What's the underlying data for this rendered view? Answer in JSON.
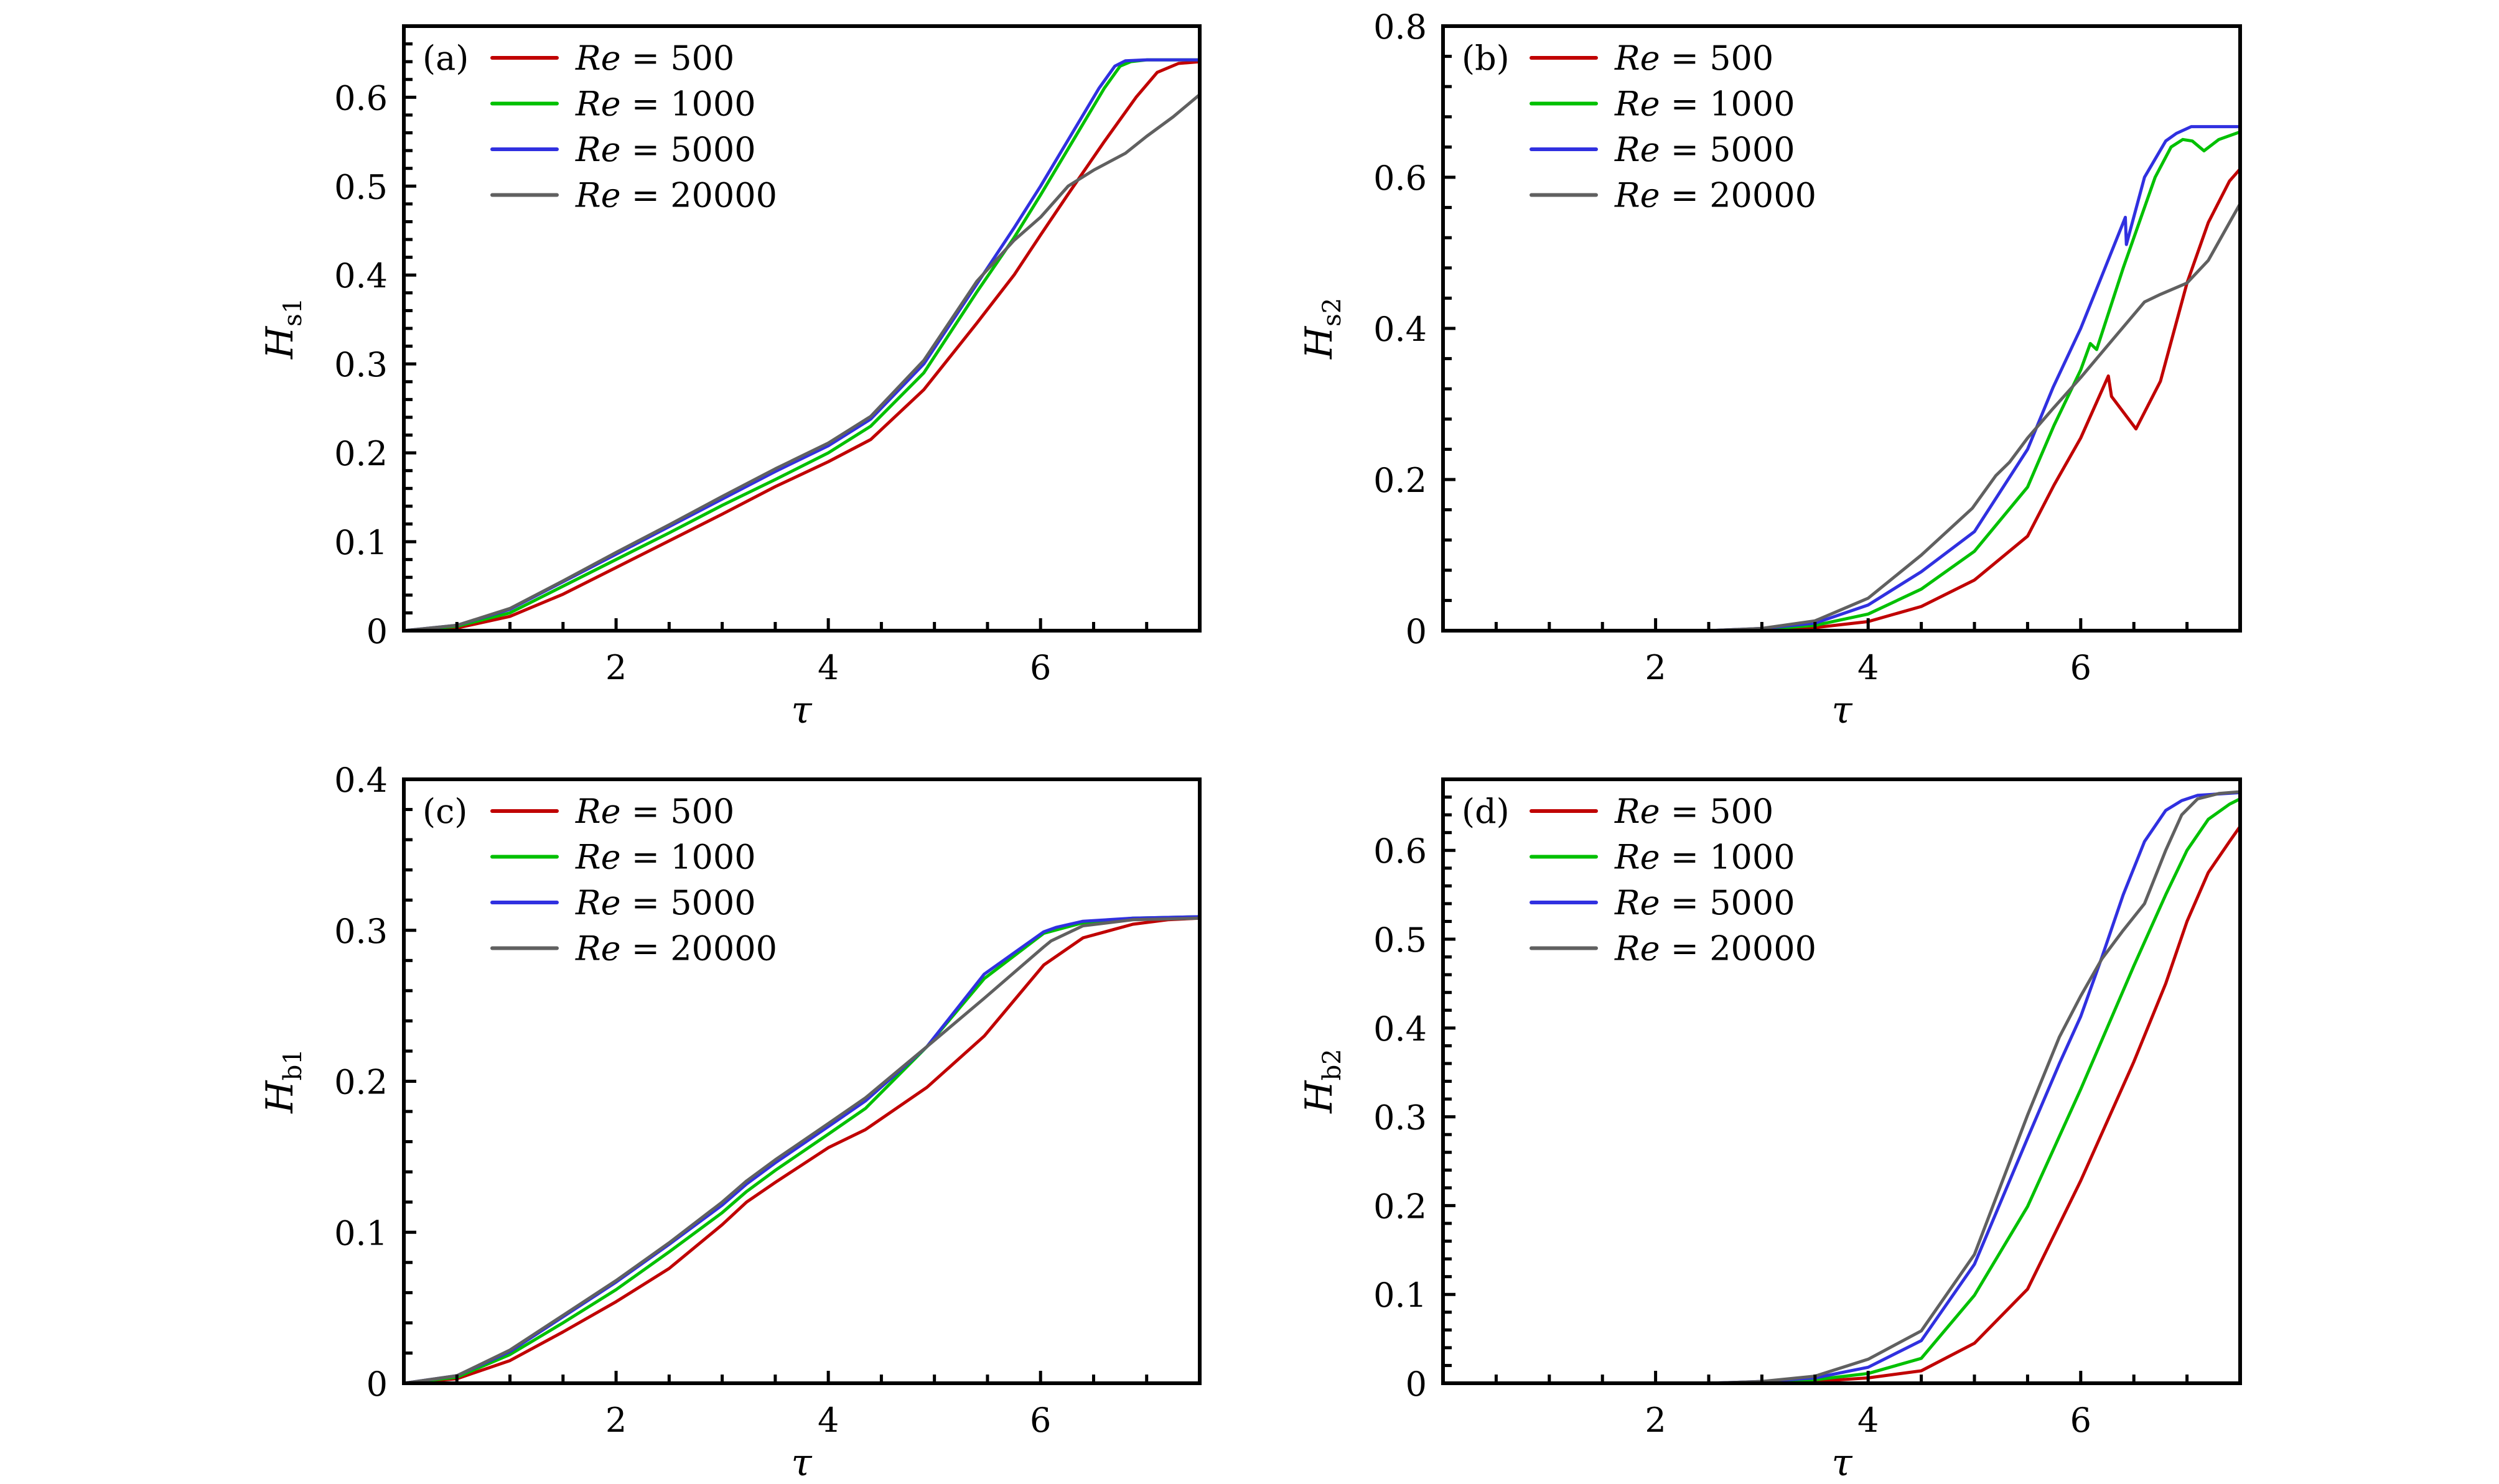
{
  "chart_data": [
    {
      "type": "line",
      "panel_label": "(a)",
      "xlabel": "τ",
      "ylabel": "H",
      "ylabel_sub": "s1",
      "xlim": [
        0,
        7.5
      ],
      "ylim": [
        0,
        0.68
      ],
      "xticks": [
        2,
        4,
        6
      ],
      "xtick_labels": [
        "2",
        "4",
        "6"
      ],
      "yticks": [
        0,
        0.1,
        0.2,
        0.3,
        0.4,
        0.5,
        0.6
      ],
      "ytick_labels": [
        "0",
        "0.1",
        "0.2",
        "0.3",
        "0.4",
        "0.5",
        "0.6"
      ],
      "x_minor_step": 0.5,
      "y_minor_step": 0.02,
      "legend": "top-left",
      "series": [
        {
          "name": "Re = 500",
          "color": "#c00000",
          "x": [
            0,
            0.5,
            1,
            1.5,
            2,
            2.5,
            3,
            3.5,
            4,
            4.4,
            4.9,
            5.4,
            5.75,
            6.0,
            6.26,
            6.6,
            6.9,
            7.1,
            7.3,
            7.5
          ],
          "y": [
            0,
            0.003,
            0.016,
            0.041,
            0.071,
            0.101,
            0.131,
            0.162,
            0.19,
            0.215,
            0.271,
            0.346,
            0.4,
            0.445,
            0.491,
            0.55,
            0.6,
            0.628,
            0.638,
            0.64
          ]
        },
        {
          "name": "Re = 1000",
          "color": "#00c000",
          "x": [
            0,
            0.5,
            1,
            1.5,
            2,
            2.5,
            3,
            3.5,
            4,
            4.4,
            4.9,
            5.4,
            5.75,
            6.0,
            6.3,
            6.6,
            6.75,
            6.85,
            7.0,
            7.5
          ],
          "y": [
            0,
            0.005,
            0.02,
            0.05,
            0.08,
            0.11,
            0.141,
            0.17,
            0.2,
            0.23,
            0.29,
            0.381,
            0.442,
            0.49,
            0.55,
            0.61,
            0.635,
            0.64,
            0.642,
            0.642
          ]
        },
        {
          "name": "Re = 5000",
          "color": "#3030e0",
          "x": [
            0,
            0.5,
            1,
            1.5,
            2,
            2.5,
            3,
            3.5,
            4,
            4.4,
            4.9,
            5.4,
            5.75,
            6.0,
            6.3,
            6.55,
            6.7,
            6.8,
            7.0,
            7.5
          ],
          "y": [
            0,
            0.006,
            0.024,
            0.055,
            0.086,
            0.117,
            0.148,
            0.179,
            0.208,
            0.238,
            0.3,
            0.39,
            0.453,
            0.5,
            0.56,
            0.61,
            0.635,
            0.641,
            0.642,
            0.642
          ]
        },
        {
          "name": "Re = 20000",
          "color": "#606060",
          "x": [
            0,
            0.5,
            1,
            1.5,
            2,
            2.5,
            3,
            3.5,
            4,
            4.4,
            4.9,
            5.4,
            5.75,
            6.0,
            6.26,
            6.5,
            6.8,
            7.0,
            7.25,
            7.5
          ],
          "y": [
            0,
            0.006,
            0.025,
            0.056,
            0.088,
            0.119,
            0.151,
            0.182,
            0.211,
            0.241,
            0.304,
            0.393,
            0.439,
            0.465,
            0.5,
            0.518,
            0.537,
            0.556,
            0.578,
            0.603
          ]
        }
      ]
    },
    {
      "type": "line",
      "panel_label": "(b)",
      "xlabel": "τ",
      "ylabel": "H",
      "ylabel_sub": "s2",
      "xlim": [
        0,
        7.5
      ],
      "ylim": [
        0,
        0.8
      ],
      "xticks": [
        2,
        4,
        6
      ],
      "xtick_labels": [
        "2",
        "4",
        "6"
      ],
      "yticks": [
        0,
        0.2,
        0.4,
        0.6,
        0.8
      ],
      "ytick_labels": [
        "0",
        "0.2",
        "0.4",
        "0.6",
        "0.8"
      ],
      "x_minor_step": 0.5,
      "y_minor_step": 0.04,
      "legend": "top-left",
      "series": [
        {
          "name": "Re = 500",
          "color": "#c00000",
          "x": [
            0,
            2.5,
            3,
            3.5,
            4,
            4.5,
            5,
            5.5,
            5.75,
            6.0,
            6.26,
            6.29,
            6.52,
            6.75,
            7.0,
            7.2,
            7.4,
            7.5
          ],
          "y": [
            0,
            0,
            0.001,
            0.004,
            0.012,
            0.032,
            0.067,
            0.125,
            0.193,
            0.255,
            0.337,
            0.31,
            0.267,
            0.33,
            0.46,
            0.54,
            0.595,
            0.611
          ]
        },
        {
          "name": "Re = 1000",
          "color": "#00c000",
          "x": [
            0,
            2.5,
            3,
            3.5,
            4,
            4.5,
            5,
            5.5,
            5.75,
            6.0,
            6.09,
            6.15,
            6.4,
            6.7,
            6.85,
            6.96,
            7.05,
            7.16,
            7.3,
            7.5
          ],
          "y": [
            0,
            0,
            0.002,
            0.007,
            0.022,
            0.055,
            0.105,
            0.19,
            0.272,
            0.345,
            0.38,
            0.372,
            0.48,
            0.6,
            0.64,
            0.65,
            0.648,
            0.635,
            0.65,
            0.66
          ]
        },
        {
          "name": "Re = 5000",
          "color": "#3030e0",
          "x": [
            0,
            2.5,
            3,
            3.5,
            4,
            4.5,
            5,
            5.5,
            5.74,
            6.0,
            6.2,
            6.42,
            6.43,
            6.6,
            6.8,
            6.9,
            7.04,
            7.5
          ],
          "y": [
            0,
            0,
            0.003,
            0.01,
            0.034,
            0.078,
            0.131,
            0.24,
            0.322,
            0.4,
            0.47,
            0.547,
            0.511,
            0.6,
            0.648,
            0.658,
            0.667,
            0.667
          ]
        },
        {
          "name": "Re = 20000",
          "color": "#606060",
          "x": [
            0,
            2.5,
            3,
            3.5,
            4,
            4.5,
            4.98,
            5.2,
            5.33,
            5.5,
            5.74,
            6.0,
            6.3,
            6.6,
            6.75,
            7.0,
            7.2,
            7.4,
            7.5
          ],
          "y": [
            0,
            0,
            0.003,
            0.013,
            0.043,
            0.1,
            0.162,
            0.205,
            0.223,
            0.255,
            0.294,
            0.335,
            0.385,
            0.435,
            0.445,
            0.46,
            0.49,
            0.54,
            0.565
          ]
        }
      ]
    },
    {
      "type": "line",
      "panel_label": "(c)",
      "xlabel": "τ",
      "ylabel": "H",
      "ylabel_sub": "b1",
      "xlim": [
        0,
        7.5
      ],
      "ylim": [
        0,
        0.4
      ],
      "xticks": [
        2,
        4,
        6
      ],
      "xtick_labels": [
        "2",
        "4",
        "6"
      ],
      "yticks": [
        0,
        0.1,
        0.2,
        0.3,
        0.4
      ],
      "ytick_labels": [
        "0",
        "0.1",
        "0.2",
        "0.3",
        "0.4"
      ],
      "x_minor_step": 0.5,
      "y_minor_step": 0.02,
      "legend": "top-left",
      "series": [
        {
          "name": "Re = 500",
          "color": "#c00000",
          "x": [
            0,
            0.5,
            1,
            1.5,
            2,
            2.5,
            3,
            3.23,
            3.5,
            4,
            4.35,
            4.93,
            5.47,
            6.03,
            6.4,
            6.87,
            7.2,
            7.5
          ],
          "y": [
            0,
            0.003,
            0.015,
            0.034,
            0.054,
            0.076,
            0.105,
            0.12,
            0.133,
            0.156,
            0.168,
            0.196,
            0.23,
            0.277,
            0.295,
            0.304,
            0.307,
            0.308
          ]
        },
        {
          "name": "Re = 1000",
          "color": "#00c000",
          "x": [
            0,
            0.5,
            1,
            1.5,
            2,
            2.5,
            3,
            3.23,
            3.5,
            4,
            4.35,
            4.93,
            5.47,
            6.03,
            6.4,
            6.87,
            7.5
          ],
          "y": [
            0,
            0.004,
            0.019,
            0.04,
            0.062,
            0.087,
            0.113,
            0.127,
            0.141,
            0.165,
            0.182,
            0.223,
            0.268,
            0.298,
            0.305,
            0.308,
            0.309
          ]
        },
        {
          "name": "Re = 5000",
          "color": "#3030e0",
          "x": [
            0,
            0.5,
            1,
            1.5,
            2,
            2.5,
            3,
            3.23,
            3.5,
            4,
            4.35,
            4.93,
            5.47,
            6.03,
            6.15,
            6.4,
            6.87,
            7.5
          ],
          "y": [
            0,
            0.005,
            0.021,
            0.044,
            0.067,
            0.092,
            0.118,
            0.132,
            0.146,
            0.17,
            0.187,
            0.223,
            0.271,
            0.299,
            0.302,
            0.306,
            0.308,
            0.309
          ]
        },
        {
          "name": "Re = 20000",
          "color": "#606060",
          "x": [
            0,
            0.5,
            1,
            1.5,
            2,
            2.5,
            3,
            3.23,
            3.5,
            4,
            4.35,
            4.93,
            5.47,
            6.03,
            6.1,
            6.4,
            6.87,
            7.5
          ],
          "y": [
            0,
            0.005,
            0.022,
            0.045,
            0.068,
            0.093,
            0.12,
            0.134,
            0.148,
            0.172,
            0.189,
            0.223,
            0.255,
            0.289,
            0.293,
            0.303,
            0.307,
            0.308
          ]
        }
      ]
    },
    {
      "type": "line",
      "panel_label": "(d)",
      "xlabel": "τ",
      "ylabel": "H",
      "ylabel_sub": "b2",
      "xlim": [
        0,
        7.5
      ],
      "ylim": [
        0,
        0.68
      ],
      "xticks": [
        2,
        4,
        6
      ],
      "xtick_labels": [
        "2",
        "4",
        "6"
      ],
      "yticks": [
        0,
        0.1,
        0.2,
        0.3,
        0.4,
        0.5,
        0.6
      ],
      "ytick_labels": [
        "0",
        "0.1",
        "0.2",
        "0.3",
        "0.4",
        "0.5",
        "0.6"
      ],
      "x_minor_step": 0.5,
      "y_minor_step": 0.02,
      "legend": "top-left",
      "series": [
        {
          "name": "Re = 500",
          "color": "#c00000",
          "x": [
            0,
            2.5,
            3,
            3.5,
            4,
            4.5,
            5,
            5.5,
            6,
            6.5,
            6.8,
            7.0,
            7.2,
            7.4,
            7.5
          ],
          "y": [
            0,
            0,
            0.001,
            0.002,
            0.006,
            0.014,
            0.045,
            0.106,
            0.228,
            0.362,
            0.45,
            0.52,
            0.575,
            0.61,
            0.627
          ]
        },
        {
          "name": "Re = 1000",
          "color": "#00c000",
          "x": [
            0,
            2.5,
            3,
            3.5,
            4,
            4.5,
            5,
            5.5,
            6,
            6.5,
            6.8,
            7.0,
            7.2,
            7.4,
            7.5
          ],
          "y": [
            0,
            0,
            0.001,
            0.004,
            0.011,
            0.028,
            0.099,
            0.199,
            0.331,
            0.47,
            0.55,
            0.6,
            0.635,
            0.652,
            0.658
          ]
        },
        {
          "name": "Re = 5000",
          "color": "#3030e0",
          "x": [
            0,
            2.5,
            3,
            3.5,
            4,
            4.5,
            5,
            5.5,
            5.8,
            6,
            6.2,
            6.4,
            6.6,
            6.8,
            6.95,
            7.1,
            7.5
          ],
          "y": [
            0,
            0,
            0.002,
            0.006,
            0.018,
            0.048,
            0.134,
            0.276,
            0.36,
            0.413,
            0.48,
            0.55,
            0.61,
            0.645,
            0.656,
            0.662,
            0.665
          ]
        },
        {
          "name": "Re = 20000",
          "color": "#606060",
          "x": [
            0,
            2.5,
            3,
            3.5,
            4,
            4.5,
            5,
            5.5,
            5.8,
            6,
            6.2,
            6.4,
            6.6,
            6.8,
            6.95,
            7.1,
            7.3,
            7.5
          ],
          "y": [
            0,
            0,
            0.002,
            0.008,
            0.027,
            0.059,
            0.145,
            0.302,
            0.39,
            0.436,
            0.478,
            0.51,
            0.54,
            0.6,
            0.64,
            0.658,
            0.664,
            0.666
          ]
        }
      ]
    }
  ]
}
